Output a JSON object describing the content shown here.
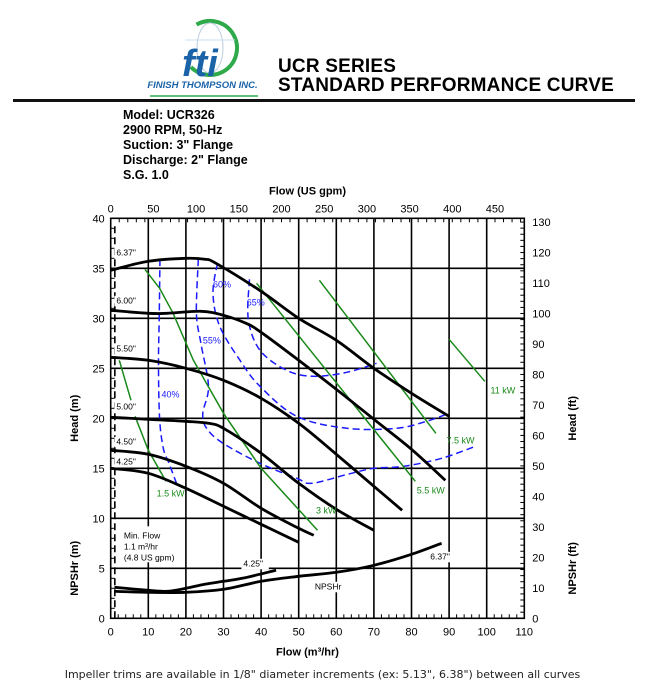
{
  "header": {
    "logo_text": "fti",
    "company": "FINISH THOMPSON INC.",
    "title_line1": "UCR SERIES",
    "title_line2": "STANDARD PERFORMANCE CURVE"
  },
  "specs": [
    "Model: UCR326",
    "2900 RPM, 50-Hz",
    "Suction: 3\" Flange",
    "Discharge: 2\" Flange",
    "S.G. 1.0"
  ],
  "footer": "Impeller trims are available in 1/8\" diameter increments (ex: 5.13\", 6.38\") between all curves",
  "chart_data": {
    "type": "line",
    "title": "UCR SERIES STANDARD PERFORMANCE CURVE",
    "xlabel": "Flow (m³/hr)",
    "x2label": "Flow (US gpm)",
    "ylabel": "Head (m)",
    "y2label": "Head (ft)",
    "ylabel_npsh": "NPSHr (m)",
    "y2label_npsh": "NPSHr (ft)",
    "xlim": [
      0,
      110
    ],
    "ylim": [
      0,
      40
    ],
    "x_ticks": [
      0,
      10,
      20,
      30,
      40,
      50,
      60,
      70,
      80,
      90,
      100,
      110
    ],
    "x2_ticks_gpm": [
      0,
      50,
      100,
      150,
      200,
      250,
      300,
      350,
      400,
      450
    ],
    "y_ticks": [
      0,
      5,
      10,
      15,
      20,
      25,
      30,
      35,
      40
    ],
    "y2_ticks_ft": [
      0,
      10,
      20,
      30,
      40,
      50,
      60,
      70,
      80,
      90,
      100,
      110,
      120,
      130
    ],
    "grid": true,
    "colors": {
      "head": "#000000",
      "power": "#1a8a1a",
      "efficiency": "#1a1aff"
    },
    "head_curves": [
      {
        "name": "6.37\"",
        "label_at": [
          1.5,
          36.3
        ],
        "points": [
          [
            0,
            34.8
          ],
          [
            10,
            35.7
          ],
          [
            20,
            36
          ],
          [
            25,
            35.9
          ],
          [
            28,
            35.5
          ],
          [
            40,
            32.7
          ],
          [
            50,
            30
          ],
          [
            60,
            27.8
          ],
          [
            70,
            25
          ],
          [
            80,
            22.5
          ],
          [
            90,
            20.2
          ]
        ]
      },
      {
        "name": "6.00\"",
        "label_at": [
          1.5,
          31.5
        ],
        "points": [
          [
            0,
            30.8
          ],
          [
            10,
            30.5
          ],
          [
            15,
            30.5
          ],
          [
            24,
            30.7
          ],
          [
            30,
            30.3
          ],
          [
            36,
            29.5
          ],
          [
            40,
            28.6
          ],
          [
            50,
            25.8
          ],
          [
            60,
            22.9
          ],
          [
            70,
            19.9
          ],
          [
            80,
            16.9
          ],
          [
            89,
            13.8
          ]
        ]
      },
      {
        "name": "5.50\"",
        "label_at": [
          1.5,
          26.7
        ],
        "points": [
          [
            0,
            26.1
          ],
          [
            10,
            25.8
          ],
          [
            20,
            25
          ],
          [
            30,
            23.8
          ],
          [
            40,
            22
          ],
          [
            50,
            19.5
          ],
          [
            60,
            16.4
          ],
          [
            70,
            13.2
          ],
          [
            77.5,
            10.8
          ]
        ]
      },
      {
        "name": "5.00\"",
        "label_at": [
          1.5,
          20.9
        ],
        "points": [
          [
            0,
            20.1
          ],
          [
            10,
            19.9
          ],
          [
            20,
            19.7
          ],
          [
            26,
            19.5
          ],
          [
            30,
            19
          ],
          [
            40,
            16.5
          ],
          [
            50,
            13.5
          ],
          [
            60,
            10.9
          ],
          [
            70,
            8.8
          ]
        ]
      },
      {
        "name": "4.50\"",
        "label_at": [
          1.5,
          17.4
        ],
        "points": [
          [
            0,
            16.8
          ],
          [
            10,
            16.4
          ],
          [
            20,
            15.2
          ],
          [
            30,
            13.5
          ],
          [
            40,
            11
          ],
          [
            50,
            9
          ],
          [
            54,
            8.3
          ]
        ]
      },
      {
        "name": "4.25\"",
        "label_at": [
          1.5,
          15.4
        ],
        "points": [
          [
            0,
            15
          ],
          [
            10,
            14.5
          ],
          [
            20,
            13
          ],
          [
            30,
            11.2
          ],
          [
            40,
            9.4
          ],
          [
            50,
            7.6
          ]
        ]
      }
    ],
    "power_lines": [
      {
        "name": "1.5 kW",
        "label_at": [
          12.2,
          12.5
        ],
        "segments": [
          [
            [
              2.3,
              25.8
            ],
            [
              5.4,
              21.8
            ]
          ],
          [
            [
              6.5,
              20.2
            ],
            [
              10,
              16.8
            ],
            [
              14.7,
              13.7
            ]
          ]
        ]
      },
      {
        "name": "3 kW",
        "label_at": [
          54.6,
          10.8
        ],
        "segments": [
          [
            [
              9.1,
              34.9
            ],
            [
              13,
              33
            ],
            [
              16.6,
              30.5
            ],
            [
              22,
              25.8
            ],
            [
              30,
              20.5
            ],
            [
              40,
              15
            ],
            [
              55,
              8.8
            ]
          ]
        ]
      },
      {
        "name": "5.5 kW",
        "label_at": [
          81.4,
          12.8
        ],
        "segments": [
          [
            [
              38.8,
              33.5
            ],
            [
              81,
              13.7
            ]
          ]
        ]
      },
      {
        "name": "7.5 kW",
        "label_at": [
          89.3,
          17.8
        ],
        "segments": [
          [
            [
              55.5,
              33.8
            ],
            [
              86.5,
              18.5
            ]
          ]
        ]
      },
      {
        "name": "11 kW",
        "label_at": [
          101,
          22.8
        ],
        "segments": [
          [
            [
              90,
              27.9
            ],
            [
              99.5,
              23.7
            ]
          ]
        ]
      }
    ],
    "efficiency_curves": [
      {
        "name": "40%",
        "label_at": [
          13.5,
          22.4
        ],
        "points": [
          [
            13.1,
            35.9
          ],
          [
            12.9,
            30
          ],
          [
            12.7,
            25.5
          ],
          [
            13,
            20
          ],
          [
            14,
            17
          ],
          [
            15.5,
            15.5
          ],
          [
            17.5,
            13.5
          ]
        ]
      },
      {
        "name": "55%",
        "label_at": [
          24.5,
          27.8
        ],
        "points": [
          [
            23.3,
            35.9
          ],
          [
            22.8,
            30.5
          ],
          [
            24,
            27.5
          ],
          [
            26,
            23.2
          ],
          [
            24.5,
            20.5
          ],
          [
            25.5,
            19
          ],
          [
            29.9,
            17.5
          ],
          [
            39.7,
            15.5
          ],
          [
            49.5,
            14
          ],
          [
            53.5,
            13.5
          ],
          [
            63,
            14.4
          ],
          [
            70,
            15
          ],
          [
            78,
            15.2
          ],
          [
            88,
            16
          ],
          [
            97,
            17.2
          ]
        ]
      },
      {
        "name": "60%",
        "label_at": [
          27.2,
          33.4
        ],
        "points": [
          [
            28.4,
            35.5
          ],
          [
            27.2,
            32.5
          ],
          [
            29,
            29.2
          ],
          [
            34.4,
            25.8
          ],
          [
            39.7,
            23.2
          ],
          [
            49.5,
            20.2
          ],
          [
            62.8,
            19
          ],
          [
            76,
            19
          ],
          [
            84,
            19.7
          ],
          [
            90,
            20.5
          ]
        ]
      },
      {
        "name": "65%",
        "label_at": [
          36.2,
          31.6
        ],
        "points": [
          [
            36.9,
            33.9
          ],
          [
            36.6,
            29.9
          ],
          [
            39.7,
            26.8
          ],
          [
            46.8,
            24.8
          ],
          [
            53.9,
            24.2
          ],
          [
            62.8,
            24.6
          ],
          [
            70.7,
            25.5
          ]
        ]
      }
    ],
    "npshr_curves": [
      {
        "name": "6.37\"",
        "label_at": [
          85,
          5.9
        ],
        "points": [
          [
            1,
            2.7
          ],
          [
            10,
            2.6
          ],
          [
            20,
            2.6
          ],
          [
            30,
            2.9
          ],
          [
            40,
            3.7
          ],
          [
            50,
            4.2
          ],
          [
            60,
            4.6
          ],
          [
            70,
            5.3
          ],
          [
            80,
            6.4
          ],
          [
            88,
            7.5
          ]
        ]
      },
      {
        "name": "4.25\"",
        "label_at": [
          35.3,
          5.2
        ],
        "points": [
          [
            1,
            3.1
          ],
          [
            10,
            2.8
          ],
          [
            15,
            2.7
          ],
          [
            20,
            3.0
          ],
          [
            25,
            3.4
          ],
          [
            30,
            3.7
          ],
          [
            35,
            4.0
          ],
          [
            44,
            4.8
          ]
        ]
      }
    ],
    "npshr_label": "NPSHr",
    "min_flow": {
      "value_m3hr": 1.1,
      "lines": [
        "Min. Flow",
        "1.1 m³/hr",
        "(4.8 US gpm)"
      ]
    }
  }
}
